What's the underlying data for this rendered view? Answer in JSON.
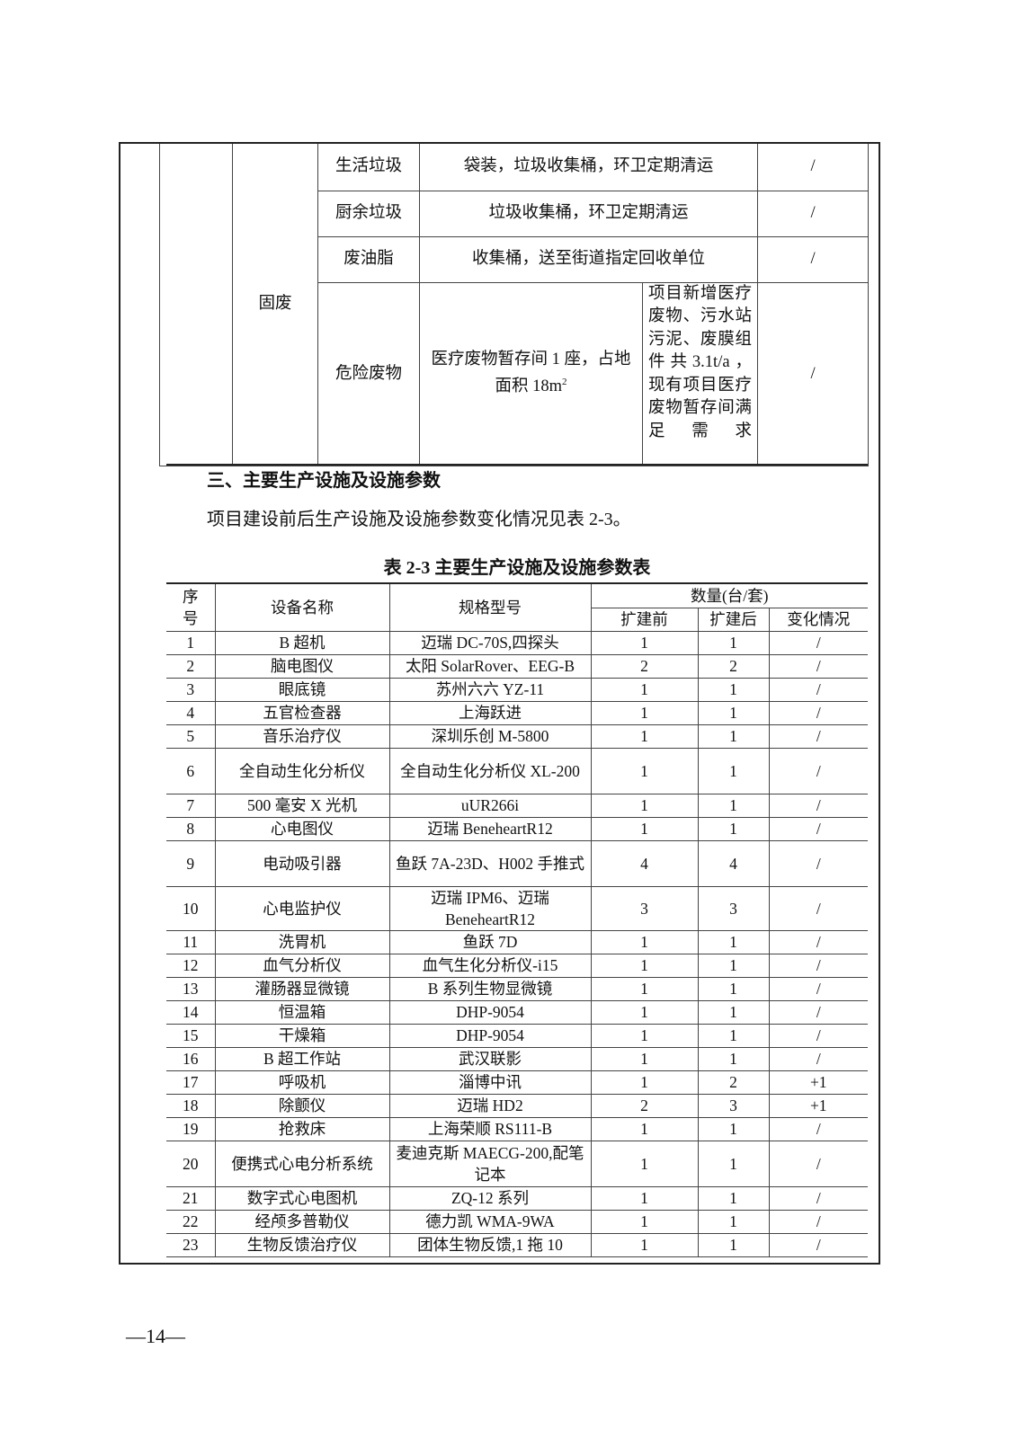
{
  "solid_waste_table": {
    "category": "固废",
    "rows": [
      {
        "type": "生活垃圾",
        "measure": "袋装，垃圾收集桶，环卫定期清运",
        "note": "",
        "change": "/"
      },
      {
        "type": "厨余垃圾",
        "measure": "垃圾收集桶，环卫定期清运",
        "note": "",
        "change": "/"
      },
      {
        "type": "废油脂",
        "measure": "收集桶，送至街道指定回收单位",
        "note": "",
        "change": "/"
      },
      {
        "type": "危险废物",
        "measure": "医疗废物暂存间 1 座，占地面积 18m",
        "measure_sup": "2",
        "note": "项目新增医疗废物、污水站污泥、废膜组件共3.1t/a，现有项目医疗废物暂存间满足需求",
        "change": "/"
      }
    ]
  },
  "section_heading": "三、主要生产设施及设施参数",
  "section_paragraph": "项目建设前后生产设施及设施参数变化情况见表 2-3。",
  "table_caption": "表 2-3 主要生产设施及设施参数表",
  "equipment_table": {
    "headers": {
      "no": "序号",
      "name": "设备名称",
      "model": "规格型号",
      "qty_group": "数量(台/套)",
      "before": "扩建前",
      "after": "扩建后",
      "change": "变化情况"
    },
    "rows": [
      {
        "no": "1",
        "name": "B 超机",
        "model": "迈瑞 DC-70S,四探头",
        "before": "1",
        "after": "1",
        "change": "/"
      },
      {
        "no": "2",
        "name": "脑电图仪",
        "model": "太阳 SolarRover、EEG-B",
        "before": "2",
        "after": "2",
        "change": "/"
      },
      {
        "no": "3",
        "name": "眼底镜",
        "model": "苏州六六 YZ-11",
        "before": "1",
        "after": "1",
        "change": "/"
      },
      {
        "no": "4",
        "name": "五官检查器",
        "model": "上海跃进",
        "before": "1",
        "after": "1",
        "change": "/"
      },
      {
        "no": "5",
        "name": "音乐治疗仪",
        "model": "深圳乐创 M-5800",
        "before": "1",
        "after": "1",
        "change": "/"
      },
      {
        "no": "6",
        "name": "全自动生化分析仪",
        "model": "全自动生化分析仪 XL-200",
        "before": "1",
        "after": "1",
        "change": "/"
      },
      {
        "no": "7",
        "name": "500 毫安 X 光机",
        "model": "uUR266i",
        "before": "1",
        "after": "1",
        "change": "/"
      },
      {
        "no": "8",
        "name": "心电图仪",
        "model": "迈瑞 BeneheartR12",
        "before": "1",
        "after": "1",
        "change": "/"
      },
      {
        "no": "9",
        "name": "电动吸引器",
        "model": "鱼跃 7A-23D、H002 手推式",
        "before": "4",
        "after": "4",
        "change": "/"
      },
      {
        "no": "10",
        "name": "心电监护仪",
        "model": "迈瑞 IPM6、迈瑞 BeneheartR12",
        "before": "3",
        "after": "3",
        "change": "/"
      },
      {
        "no": "11",
        "name": "洗胃机",
        "model": "鱼跃 7D",
        "before": "1",
        "after": "1",
        "change": "/"
      },
      {
        "no": "12",
        "name": "血气分析仪",
        "model": "血气生化分析仪-i15",
        "before": "1",
        "after": "1",
        "change": "/"
      },
      {
        "no": "13",
        "name": "灌肠器显微镜",
        "model": "B 系列生物显微镜",
        "before": "1",
        "after": "1",
        "change": "/"
      },
      {
        "no": "14",
        "name": "恒温箱",
        "model": "DHP-9054",
        "before": "1",
        "after": "1",
        "change": "/"
      },
      {
        "no": "15",
        "name": "干燥箱",
        "model": "DHP-9054",
        "before": "1",
        "after": "1",
        "change": "/"
      },
      {
        "no": "16",
        "name": "B 超工作站",
        "model": "武汉联影",
        "before": "1",
        "after": "1",
        "change": "/"
      },
      {
        "no": "17",
        "name": "呼吸机",
        "model": "淄博中讯",
        "before": "1",
        "after": "2",
        "change": "+1"
      },
      {
        "no": "18",
        "name": "除颤仪",
        "model": "迈瑞 HD2",
        "before": "2",
        "after": "3",
        "change": "+1"
      },
      {
        "no": "19",
        "name": "抢救床",
        "model": "上海荣顺 RS111-B",
        "before": "1",
        "after": "1",
        "change": "/"
      },
      {
        "no": "20",
        "name": "便携式心电分析系统",
        "model": "麦迪克斯 MAECG-200,配笔记本",
        "before": "1",
        "after": "1",
        "change": "/"
      },
      {
        "no": "21",
        "name": "数字式心电图机",
        "model": "ZQ-12 系列",
        "before": "1",
        "after": "1",
        "change": "/"
      },
      {
        "no": "22",
        "name": "经颅多普勒仪",
        "model": "德力凯 WMA-9WA",
        "before": "1",
        "after": "1",
        "change": "/"
      },
      {
        "no": "23",
        "name": "生物反馈治疗仪",
        "model": "团体生物反馈,1 拖 10",
        "before": "1",
        "after": "1",
        "change": "/"
      }
    ]
  },
  "page_number": "—14—"
}
